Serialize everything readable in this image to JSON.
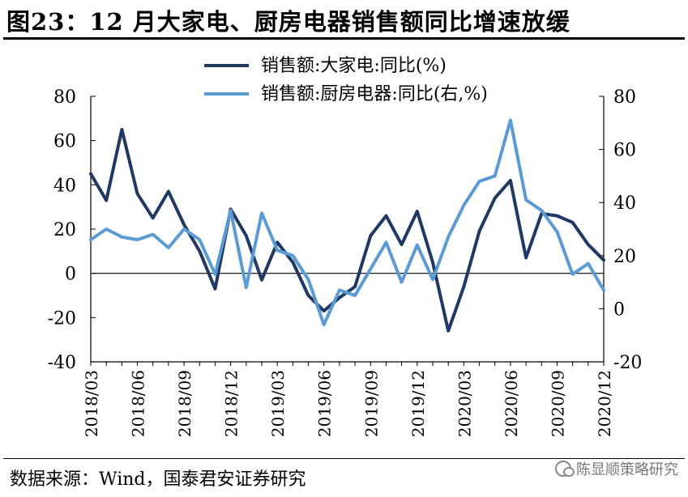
{
  "title": "图23：12 月大家电、厨房电器销售额同比增速放缓",
  "source": "数据来源：Wind，国泰君安证券研究",
  "watermark": "陈显顺策略研究",
  "colors": {
    "series1": "#1f3864",
    "series2": "#5b9bd5"
  },
  "chart_data": {
    "type": "line",
    "x": [
      "2018/03",
      "2018/04",
      "2018/05",
      "2018/06",
      "2018/07",
      "2018/08",
      "2018/09",
      "2018/10",
      "2018/11",
      "2018/12",
      "2019/01",
      "2019/02",
      "2019/03",
      "2019/04",
      "2019/05",
      "2019/06",
      "2019/07",
      "2019/08",
      "2019/09",
      "2019/10",
      "2019/11",
      "2019/12",
      "2020/01",
      "2020/02",
      "2020/03",
      "2020/04",
      "2020/05",
      "2020/06",
      "2020/07",
      "2020/08",
      "2020/09",
      "2020/10",
      "2020/11",
      "2020/12"
    ],
    "x_tick_labels": [
      "2018/03",
      "2018/06",
      "2018/09",
      "2018/12",
      "2019/03",
      "2019/06",
      "2019/09",
      "2019/12",
      "2020/03",
      "2020/06",
      "2020/09",
      "2020/12"
    ],
    "series": [
      {
        "name": "销售额:大家电:同比(%)",
        "axis": "left",
        "values": [
          45,
          33,
          65,
          36,
          25,
          37,
          22,
          10,
          -7,
          29,
          17,
          -3,
          14,
          5,
          -10,
          -17,
          -11,
          -6,
          17,
          26,
          13,
          28,
          5,
          -26,
          -6,
          19,
          34,
          42,
          7,
          27,
          26,
          23,
          13,
          6
        ]
      },
      {
        "name": "销售额:厨房电器:同比(右,%)",
        "axis": "right",
        "values": [
          26,
          30,
          27,
          26,
          28,
          23,
          30,
          26,
          13,
          37,
          8,
          36,
          22,
          20,
          11,
          -6,
          7,
          5,
          15,
          25,
          10,
          24,
          11,
          27,
          39,
          48,
          50,
          71,
          41,
          37,
          29,
          13,
          17,
          7
        ]
      }
    ],
    "ylim_left": [
      -40,
      80
    ],
    "ylim_right": [
      -20,
      80
    ],
    "yticks_left": [
      -40,
      -20,
      0,
      20,
      40,
      60,
      80
    ],
    "yticks_right": [
      -20,
      0,
      20,
      40,
      60,
      80
    ],
    "legend_position": "top-center",
    "grid": false
  }
}
